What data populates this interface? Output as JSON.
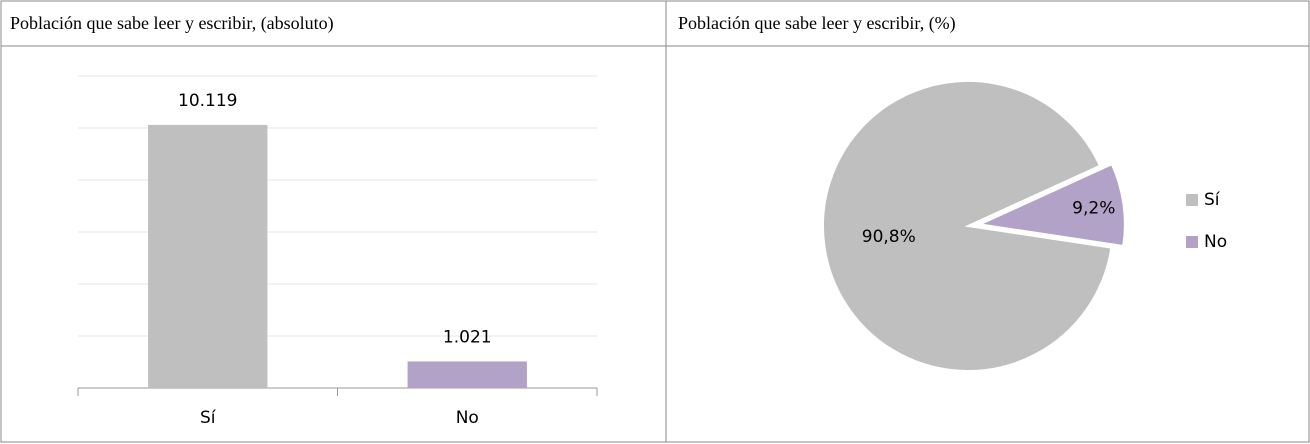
{
  "chart_data": [
    {
      "type": "bar",
      "title": "Población que sabe leer y escribir, (absoluto)",
      "categories": [
        "Sí",
        "No"
      ],
      "values": [
        10119,
        1021
      ],
      "value_labels": [
        "10.119",
        "1.021"
      ],
      "colors": [
        "#bfbfbf",
        "#b3a2c7"
      ],
      "ylim": [
        0,
        12000
      ],
      "yticks": [
        0,
        2000,
        4000,
        6000,
        8000,
        10000,
        12000
      ],
      "grid": true
    },
    {
      "type": "pie",
      "title": "Población que sabe leer y escribir, (%)",
      "categories": [
        "Sí",
        "No"
      ],
      "values": [
        90.8,
        9.2
      ],
      "value_labels": [
        "90,8%",
        "9,2%"
      ],
      "colors": [
        "#bfbfbf",
        "#b3a2c7"
      ],
      "legend": "right"
    }
  ]
}
